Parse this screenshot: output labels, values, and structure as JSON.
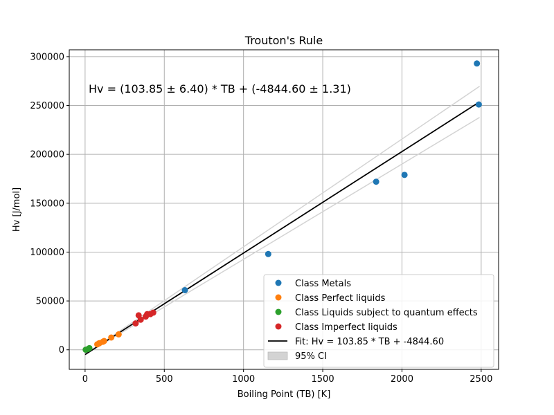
{
  "chart_data": {
    "type": "scatter",
    "title": "Trouton's Rule",
    "xlabel": "Boiling Point (TB) [K]",
    "ylabel": "Hv [J/mol]",
    "xlim": [
      -100,
      2610
    ],
    "ylim": [
      -20000,
      307000
    ],
    "xticks": [
      0,
      500,
      1000,
      1500,
      2000,
      2500
    ],
    "yticks": [
      0,
      50000,
      100000,
      150000,
      200000,
      250000,
      300000
    ],
    "grid": true,
    "legend_position": "lower right",
    "annotation": "Hv = (103.85 ± 6.40) * TB + (-4844.60 ± 1.31)",
    "series": [
      {
        "name": "Class Metals",
        "color": "#1f77b4",
        "points": [
          [
            630,
            61000
          ],
          [
            1156,
            98000
          ],
          [
            1837,
            172000
          ],
          [
            2016,
            179000
          ],
          [
            2473,
            293000
          ],
          [
            2485,
            251000
          ]
        ]
      },
      {
        "name": "Class Perfect liquids",
        "color": "#ff7f0e",
        "points": [
          [
            77,
            5600
          ],
          [
            87,
            6500
          ],
          [
            90,
            6800
          ],
          [
            112,
            8200
          ],
          [
            120,
            9000
          ],
          [
            165,
            12600
          ],
          [
            212,
            15800
          ]
        ]
      },
      {
        "name": "Class Liquids subject to quantum effects",
        "color": "#2ca02c",
        "points": [
          [
            4,
            100
          ],
          [
            20,
            900
          ],
          [
            27,
            1700
          ]
        ]
      },
      {
        "name": "Class Imperfect liquids",
        "color": "#d62728",
        "points": [
          [
            319,
            27000
          ],
          [
            338,
            35300
          ],
          [
            351,
            30800
          ],
          [
            383,
            34000
          ],
          [
            392,
            36500
          ],
          [
            412,
            36500
          ],
          [
            430,
            38000
          ]
        ]
      }
    ],
    "fit": {
      "label": "Fit: Hv = 103.85 * TB + -4844.60",
      "color": "#000000",
      "slope": 103.85,
      "intercept": -4844.6,
      "x_range": [
        0,
        2490
      ]
    },
    "ci": {
      "label": "95% CI",
      "color": "#d3d3d3",
      "slope_upper": 110.25,
      "slope_lower": 97.45
    }
  }
}
